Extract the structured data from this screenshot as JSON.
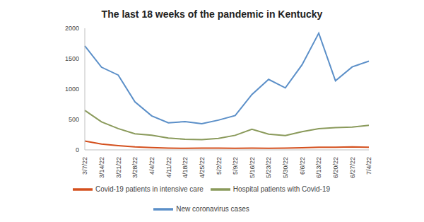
{
  "chart_data": {
    "type": "line",
    "title": "The last 18 weeks of the pandemic in Kentucky",
    "categories": [
      "3/7/22",
      "3/14/22",
      "3/21/22",
      "3/28/22",
      "4/4/22",
      "4/11/22",
      "4/18/22",
      "4/25/22",
      "5/2/22",
      "5/9/22",
      "5/16/22",
      "5/23/22",
      "5/30/22",
      "6/6/22",
      "6/13/22",
      "6/20/22",
      "6/27/22",
      "7/4/22"
    ],
    "series": [
      {
        "name": "New coronavirus cases",
        "color": "#5b8fc8",
        "values": [
          1710,
          1360,
          1230,
          790,
          560,
          445,
          465,
          430,
          490,
          565,
          910,
          1160,
          1020,
          1400,
          1920,
          1135,
          1365,
          1460
        ]
      },
      {
        "name": "Covid-19 patients in intensive care",
        "color": "#d4501e",
        "values": [
          145,
          95,
          70,
          50,
          38,
          30,
          25,
          28,
          30,
          25,
          28,
          25,
          28,
          35,
          45,
          45,
          50,
          45
        ]
      },
      {
        "name": "Hospital patients with Covid-19",
        "color": "#8a9a5b",
        "values": [
          650,
          460,
          350,
          265,
          240,
          195,
          175,
          170,
          190,
          240,
          340,
          260,
          235,
          300,
          350,
          365,
          375,
          405
        ]
      }
    ],
    "ylim": [
      0,
      2000
    ],
    "yticks": [
      0,
      500,
      1000,
      1500,
      2000
    ],
    "grid": false,
    "legend": "bottom"
  }
}
